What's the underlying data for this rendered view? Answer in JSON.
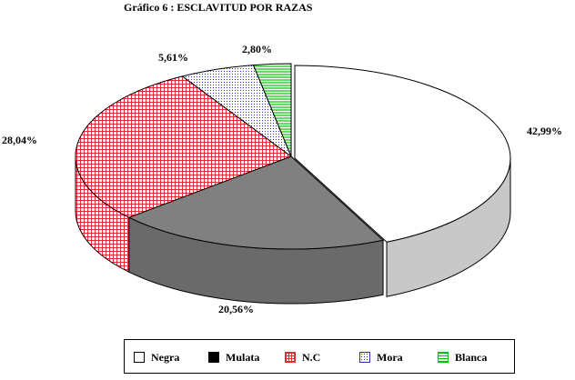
{
  "chart_data": {
    "type": "pie",
    "title": "Gráfico 6 : ESCLAVITUD POR RAZAS",
    "series": [
      {
        "name": "Negra",
        "value": 42.99,
        "label": "42,99%",
        "color": "#ffffff",
        "pattern": "solid-white"
      },
      {
        "name": "Mulata",
        "value": 0.0,
        "label": "",
        "color": "#000000",
        "pattern": "solid-black"
      },
      {
        "name": "N.C",
        "value": 28.04,
        "label": "28,04%",
        "color": "#e03030",
        "pattern": "red-grid"
      },
      {
        "name": "Mora",
        "value": 5.61,
        "label": "5,61%",
        "color": "#3030c0",
        "pattern": "blue-dots"
      },
      {
        "name": "Blanca",
        "value": 2.8,
        "label": "2,80%",
        "color": "#00c000",
        "pattern": "green-hlines"
      }
    ],
    "extra_slice_label": "20,56%",
    "extra_slice_value": 20.56,
    "legend_position": "bottom",
    "style": "3d-exploded-pie"
  }
}
